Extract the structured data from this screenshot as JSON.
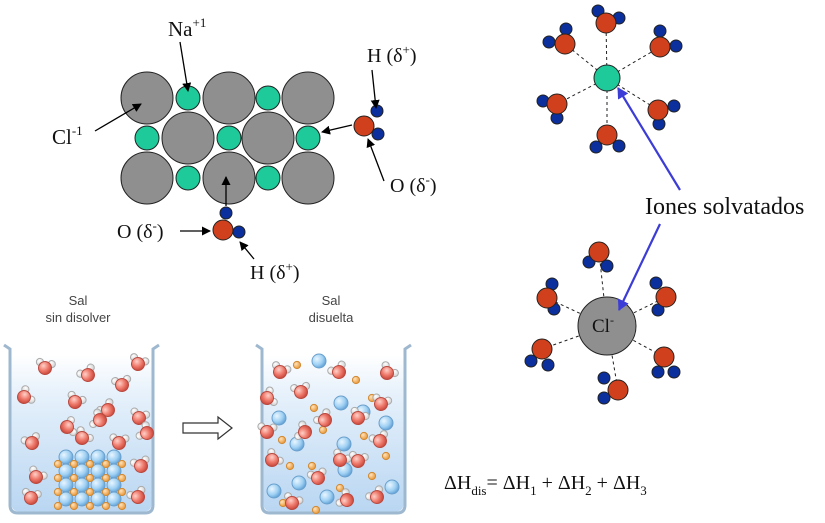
{
  "lattice": {
    "label_na": "Na",
    "label_na_sup": "+1",
    "label_cl": "Cl",
    "label_cl_sup": "-1",
    "label_h_top": "H (δ",
    "label_h_top_sup": "+",
    "label_h_top_end": ")",
    "label_o_right": "O (δ",
    "label_o_right_sup": "-",
    "label_o_right_end": ")",
    "label_o_left": "O (δ",
    "label_o_left_sup": "-",
    "label_o_left_end": ")",
    "label_h_bottom": "H (δ",
    "label_h_bottom_sup": "+",
    "label_h_bottom_end": ")"
  },
  "solvation": {
    "label": "Iones solvatados",
    "cl_label": "Cl",
    "cl_sup": "-"
  },
  "beakers": {
    "left_line1": "Sal",
    "left_line2": "sin disolver",
    "right_line1": "Sal",
    "right_line2": "disuelta"
  },
  "equation": {
    "delta": "ΔH",
    "sub_dis": "dis",
    "eq": "= ΔH",
    "sub1": "1",
    "plus1": " + ΔH",
    "sub2": "2",
    "plus2": " + ΔH",
    "sub3": "3"
  },
  "colors": {
    "chloride": "#8f8f8f",
    "sodium": "#1ec99a",
    "oxygen": "#d0401c",
    "hydrogen": "#0b2f9c",
    "arrow_blue": "#3c3cd6",
    "water_red": "#e86a5c",
    "ion_blue": "#8ec6ee",
    "ion_orange": "#f2a74c"
  }
}
